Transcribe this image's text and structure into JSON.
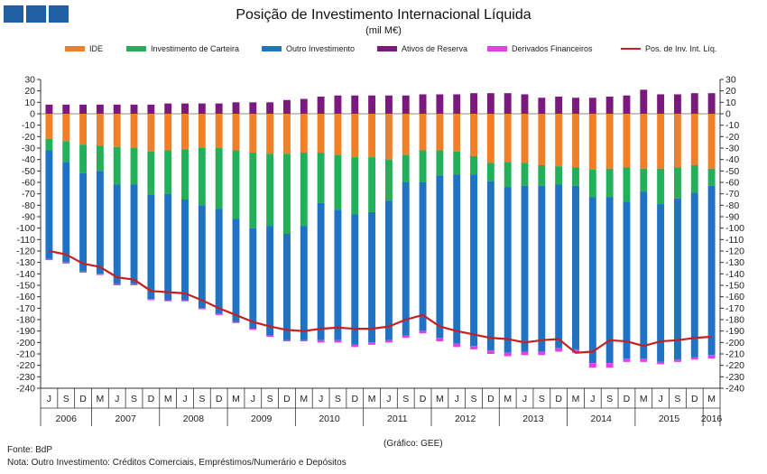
{
  "header": {
    "title": "Posição de Investimento Internacional Líquida",
    "subtitle": "(mil M€)"
  },
  "footer": {
    "credit": "(Gráfico: GEE)",
    "source": "Fonte: BdP",
    "note": "Nota: Outro Investimento:  Créditos Comerciais, Empréstimos/Numerário  e Depósitos"
  },
  "colors": {
    "IDE": "#f07f28",
    "Investimento de Carteira": "#22b05a",
    "Outro Investimento": "#1f72c4",
    "Ativos de Reserva": "#7a1a7e",
    "Derivados Financeiros": "#e040e8",
    "Pos. de Inv. Int. Líq.": "#c62020",
    "logo": "#1f5fa3"
  },
  "chart_data": {
    "type": "bar",
    "stacked": true,
    "ylim": [
      -240,
      30
    ],
    "ytick_step": 10,
    "y_axis_both_sides": true,
    "grid": false,
    "legend_position": "top",
    "legend": [
      "IDE",
      "Investimento de Carteira",
      "Outro Investimento",
      "Ativos de Reserva",
      "Derivados Financeiros",
      "Pos. de Inv. Int. Líq."
    ],
    "categories": [
      "J",
      "S",
      "D",
      "M",
      "J",
      "S",
      "D",
      "M",
      "J",
      "S",
      "D",
      "M",
      "J",
      "S",
      "D",
      "M",
      "J",
      "S",
      "D",
      "M",
      "J",
      "S",
      "D",
      "M",
      "J",
      "S",
      "D",
      "M",
      "J",
      "S",
      "D",
      "M",
      "J",
      "S",
      "D",
      "M",
      "J",
      "S",
      "D",
      "M"
    ],
    "years": [
      {
        "label": "2006",
        "start": 0,
        "end": 2
      },
      {
        "label": "2007",
        "start": 3,
        "end": 6
      },
      {
        "label": "2008",
        "start": 7,
        "end": 10
      },
      {
        "label": "2009",
        "start": 11,
        "end": 14
      },
      {
        "label": "2010",
        "start": 15,
        "end": 18
      },
      {
        "label": "2011",
        "start": 19,
        "end": 22
      },
      {
        "label": "2012",
        "start": 23,
        "end": 26
      },
      {
        "label": "2013",
        "start": 27,
        "end": 30
      },
      {
        "label": "2014",
        "start": 31,
        "end": 34
      },
      {
        "label": "2015",
        "start": 35,
        "end": 38
      },
      {
        "label": "2016",
        "start": 39,
        "end": 39
      }
    ],
    "series": [
      {
        "name": "Ativos de Reserva",
        "kind": "bar",
        "values": [
          8,
          8,
          8,
          8,
          8,
          8,
          8,
          9,
          9,
          9,
          9,
          10,
          10,
          10,
          12,
          13,
          15,
          16,
          16,
          16,
          16,
          16,
          17,
          17,
          17,
          18,
          18,
          18,
          17,
          14,
          15,
          14,
          14,
          15,
          16,
          21,
          17,
          17,
          18,
          18
        ]
      },
      {
        "name": "IDE",
        "kind": "bar",
        "values": [
          -22,
          -24,
          -27,
          -28,
          -29,
          -30,
          -33,
          -32,
          -31,
          -30,
          -30,
          -32,
          -34,
          -35,
          -35,
          -34,
          -34,
          -36,
          -38,
          -38,
          -40,
          -36,
          -32,
          -32,
          -33,
          -37,
          -43,
          -42,
          -43,
          -45,
          -46,
          -47,
          -49,
          -48,
          -47,
          -48,
          -48,
          -47,
          -45,
          -48
        ]
      },
      {
        "name": "Investimento de Carteira",
        "kind": "bar",
        "values": [
          -10,
          -18,
          -25,
          -22,
          -33,
          -32,
          -38,
          -38,
          -44,
          -50,
          -53,
          -60,
          -66,
          -63,
          -70,
          -64,
          -44,
          -48,
          -50,
          -48,
          -36,
          -24,
          -28,
          -22,
          -20,
          -16,
          -16,
          -22,
          -20,
          -18,
          -16,
          -16,
          -24,
          -25,
          -30,
          -20,
          -31,
          -27,
          -24,
          -15
        ]
      },
      {
        "name": "Outro Investimento",
        "kind": "bar",
        "values": [
          -95,
          -88,
          -86,
          -90,
          -87,
          -87,
          -91,
          -93,
          -88,
          -90,
          -92,
          -90,
          -88,
          -96,
          -93,
          -100,
          -120,
          -114,
          -114,
          -114,
          -122,
          -134,
          -130,
          -142,
          -148,
          -150,
          -148,
          -145,
          -145,
          -145,
          -143,
          -143,
          -145,
          -145,
          -137,
          -146,
          -138,
          -141,
          -144,
          -148
        ]
      },
      {
        "name": "Derivados Financeiros",
        "kind": "bar",
        "values": [
          -1,
          -1,
          -1,
          -1,
          -1,
          -1,
          -1,
          -1,
          -1,
          -1,
          -1,
          -1,
          -1,
          -1,
          -1,
          -1,
          -2,
          -2,
          -2,
          -2,
          -2,
          -2,
          -2,
          -3,
          -3,
          -3,
          -3,
          -3,
          -3,
          -3,
          -3,
          -3,
          -4,
          -4,
          -3,
          -3,
          -2,
          -2,
          -2,
          -3
        ]
      },
      {
        "name": "Pos. de Inv. Int. Líq.",
        "kind": "line",
        "values": [
          -120,
          -123,
          -131,
          -134,
          -143,
          -145,
          -155,
          -156,
          -157,
          -163,
          -170,
          -176,
          -182,
          -186,
          -189,
          -190,
          -188,
          -187,
          -188,
          -188,
          -186,
          -180,
          -176,
          -186,
          -190,
          -193,
          -196,
          -197,
          -200,
          -198,
          -197,
          -209,
          -208,
          -198,
          -199,
          -203,
          -199,
          -198,
          -196,
          -195
        ]
      }
    ]
  }
}
